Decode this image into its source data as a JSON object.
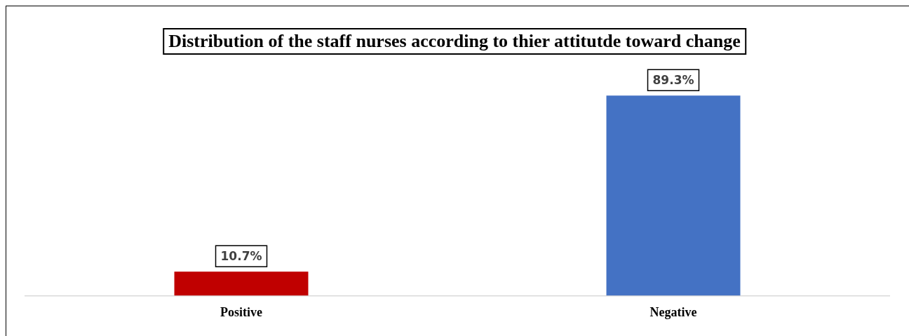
{
  "chart_data": {
    "type": "bar",
    "title": "Distribution of the staff nurses according to thier attitutde toward change",
    "categories": [
      "Positive",
      "Negative"
    ],
    "values": [
      10.7,
      89.3
    ],
    "colors": [
      "#c00000",
      "#4472c4"
    ],
    "value_labels": [
      "10.7%",
      "89.3%"
    ],
    "grid": false,
    "legend": false
  }
}
